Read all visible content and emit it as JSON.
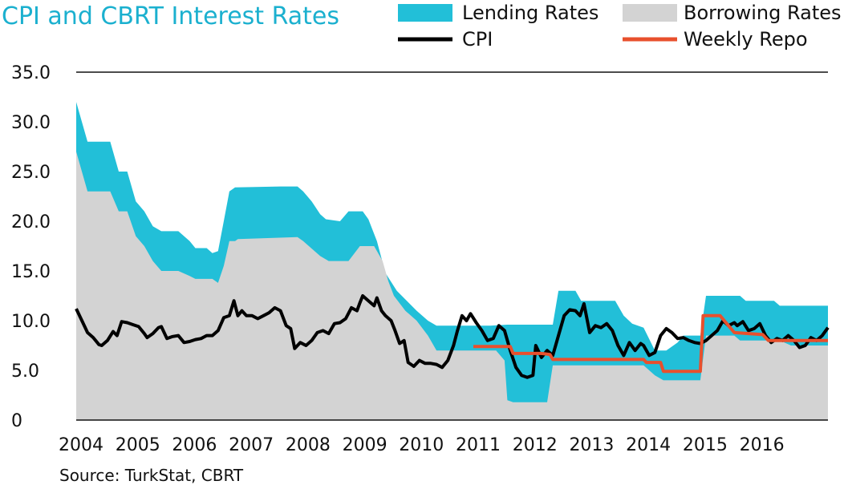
{
  "chart_data": {
    "type": "area",
    "title": "CPI and CBRT Interest Rates",
    "source": "Source: TurkStat, CBRT",
    "x_range": [
      2004.0,
      2017.25
    ],
    "ylim": [
      0,
      35
    ],
    "y_ticks": [
      {
        "value": 0,
        "label": "0"
      },
      {
        "value": 5,
        "label": "5.0"
      },
      {
        "value": 10,
        "label": "10.0"
      },
      {
        "value": 15,
        "label": "15.0"
      },
      {
        "value": 20,
        "label": "20.0"
      },
      {
        "value": 25,
        "label": "25.0"
      },
      {
        "value": 30,
        "label": "30.0"
      },
      {
        "value": 35,
        "label": "35.0"
      }
    ],
    "x_ticks": [
      {
        "value": 2004,
        "label": "2004"
      },
      {
        "value": 2005,
        "label": "2005"
      },
      {
        "value": 2006,
        "label": "2006"
      },
      {
        "value": 2007,
        "label": "2007"
      },
      {
        "value": 2008,
        "label": "2008"
      },
      {
        "value": 2009,
        "label": "2009"
      },
      {
        "value": 2010,
        "label": "2010"
      },
      {
        "value": 2011,
        "label": "2011"
      },
      {
        "value": 2012,
        "label": "2012"
      },
      {
        "value": 2013,
        "label": "2013"
      },
      {
        "value": 2014,
        "label": "2014"
      },
      {
        "value": 2015,
        "label": "2015"
      },
      {
        "value": 2016,
        "label": "2016"
      }
    ],
    "grid": false,
    "legend": {
      "placement": "top-right",
      "items": [
        {
          "label": "Lending Rates",
          "kind": "area",
          "color": "#22bfd8"
        },
        {
          "label": "Borrowing Rates",
          "kind": "area",
          "color": "#d3d3d3"
        },
        {
          "label": "CPI",
          "kind": "line",
          "color": "#000000"
        },
        {
          "label": "Weekly Repo",
          "kind": "line",
          "color": "#e8502d"
        }
      ]
    },
    "series": [
      {
        "name": "Lending Rates",
        "kind": "area",
        "color": "#22bfd8",
        "points": [
          [
            2004.0,
            32.0
          ],
          [
            2004.2,
            28.0
          ],
          [
            2004.6,
            28.0
          ],
          [
            2004.75,
            25.0
          ],
          [
            2004.9,
            25.0
          ],
          [
            2005.05,
            22.0
          ],
          [
            2005.2,
            21.0
          ],
          [
            2005.35,
            19.5
          ],
          [
            2005.5,
            19.0
          ],
          [
            2005.8,
            19.0
          ],
          [
            2006.0,
            18.0
          ],
          [
            2006.1,
            17.3
          ],
          [
            2006.3,
            17.3
          ],
          [
            2006.4,
            16.8
          ],
          [
            2006.5,
            17.0
          ],
          [
            2006.6,
            20.0
          ],
          [
            2006.7,
            23.0
          ],
          [
            2006.8,
            23.4
          ],
          [
            2007.6,
            23.5
          ],
          [
            2007.9,
            23.5
          ],
          [
            2008.0,
            23.0
          ],
          [
            2008.15,
            22.0
          ],
          [
            2008.3,
            20.7
          ],
          [
            2008.4,
            20.2
          ],
          [
            2008.65,
            20.0
          ],
          [
            2008.8,
            21.0
          ],
          [
            2009.05,
            21.0
          ],
          [
            2009.15,
            20.2
          ],
          [
            2009.3,
            18.0
          ],
          [
            2009.45,
            14.8
          ],
          [
            2009.65,
            13.0
          ],
          [
            2010.0,
            11.0
          ],
          [
            2010.2,
            10.0
          ],
          [
            2010.35,
            9.5
          ],
          [
            2011.0,
            9.5
          ],
          [
            2011.3,
            9.5
          ],
          [
            2011.6,
            9.6
          ],
          [
            2012.0,
            9.6
          ],
          [
            2012.4,
            9.6
          ],
          [
            2012.5,
            13.0
          ],
          [
            2012.8,
            13.0
          ],
          [
            2012.9,
            12.0
          ],
          [
            2013.5,
            12.0
          ],
          [
            2013.65,
            10.5
          ],
          [
            2013.8,
            9.7
          ],
          [
            2014.0,
            9.3
          ],
          [
            2014.2,
            7.0
          ],
          [
            2014.4,
            7.0
          ],
          [
            2014.6,
            7.8
          ],
          [
            2014.7,
            8.5
          ],
          [
            2015.0,
            8.5
          ],
          [
            2015.1,
            12.5
          ],
          [
            2015.7,
            12.5
          ],
          [
            2015.8,
            12.0
          ],
          [
            2016.3,
            12.0
          ],
          [
            2016.4,
            11.5
          ],
          [
            2017.25,
            11.5
          ]
        ]
      },
      {
        "name": "Borrowing Rates",
        "kind": "area",
        "color": "#d3d3d3",
        "points": [
          [
            2004.0,
            27.0
          ],
          [
            2004.2,
            23.0
          ],
          [
            2004.6,
            23.0
          ],
          [
            2004.75,
            21.0
          ],
          [
            2004.9,
            21.0
          ],
          [
            2005.05,
            18.5
          ],
          [
            2005.2,
            17.5
          ],
          [
            2005.35,
            16.0
          ],
          [
            2005.5,
            15.0
          ],
          [
            2005.8,
            15.0
          ],
          [
            2006.0,
            14.5
          ],
          [
            2006.1,
            14.2
          ],
          [
            2006.4,
            14.2
          ],
          [
            2006.5,
            13.8
          ],
          [
            2006.6,
            15.5
          ],
          [
            2006.7,
            18.0
          ],
          [
            2006.8,
            18.0
          ],
          [
            2006.85,
            18.2
          ],
          [
            2007.9,
            18.4
          ],
          [
            2008.0,
            18.0
          ],
          [
            2008.3,
            16.5
          ],
          [
            2008.45,
            16.0
          ],
          [
            2008.8,
            16.0
          ],
          [
            2009.0,
            17.5
          ],
          [
            2009.25,
            17.5
          ],
          [
            2009.4,
            16.0
          ],
          [
            2009.5,
            14.0
          ],
          [
            2009.6,
            12.5
          ],
          [
            2009.8,
            11.0
          ],
          [
            2010.0,
            10.0
          ],
          [
            2010.2,
            8.5
          ],
          [
            2010.35,
            7.0
          ],
          [
            2010.5,
            7.0
          ],
          [
            2011.0,
            7.0
          ],
          [
            2011.4,
            7.0
          ],
          [
            2011.55,
            6.0
          ],
          [
            2011.6,
            2.0
          ],
          [
            2011.7,
            1.8
          ],
          [
            2012.3,
            1.8
          ],
          [
            2012.4,
            5.5
          ],
          [
            2013.0,
            5.5
          ],
          [
            2013.6,
            5.5
          ],
          [
            2014.0,
            5.5
          ],
          [
            2014.2,
            4.5
          ],
          [
            2014.35,
            4.0
          ],
          [
            2015.0,
            4.0
          ],
          [
            2015.1,
            8.5
          ],
          [
            2015.6,
            8.5
          ],
          [
            2015.7,
            8.0
          ],
          [
            2016.4,
            8.0
          ],
          [
            2016.6,
            7.5
          ],
          [
            2017.25,
            7.5
          ]
        ]
      },
      {
        "name": "CPI",
        "kind": "line",
        "color": "#000000",
        "points": [
          [
            2004.0,
            11.2
          ],
          [
            2004.1,
            10.0
          ],
          [
            2004.2,
            8.8
          ],
          [
            2004.3,
            8.3
          ],
          [
            2004.4,
            7.6
          ],
          [
            2004.45,
            7.5
          ],
          [
            2004.55,
            8.0
          ],
          [
            2004.65,
            8.9
          ],
          [
            2004.72,
            8.5
          ],
          [
            2004.8,
            9.9
          ],
          [
            2004.9,
            9.8
          ],
          [
            2005.0,
            9.6
          ],
          [
            2005.1,
            9.4
          ],
          [
            2005.2,
            8.7
          ],
          [
            2005.25,
            8.3
          ],
          [
            2005.35,
            8.7
          ],
          [
            2005.45,
            9.3
          ],
          [
            2005.5,
            9.4
          ],
          [
            2005.6,
            8.2
          ],
          [
            2005.7,
            8.4
          ],
          [
            2005.8,
            8.5
          ],
          [
            2005.9,
            7.8
          ],
          [
            2006.0,
            7.9
          ],
          [
            2006.1,
            8.1
          ],
          [
            2006.2,
            8.2
          ],
          [
            2006.3,
            8.5
          ],
          [
            2006.4,
            8.5
          ],
          [
            2006.5,
            9.0
          ],
          [
            2006.6,
            10.3
          ],
          [
            2006.7,
            10.5
          ],
          [
            2006.78,
            12.0
          ],
          [
            2006.85,
            10.5
          ],
          [
            2006.92,
            11.0
          ],
          [
            2007.0,
            10.5
          ],
          [
            2007.1,
            10.5
          ],
          [
            2007.2,
            10.2
          ],
          [
            2007.3,
            10.5
          ],
          [
            2007.4,
            10.8
          ],
          [
            2007.5,
            11.3
          ],
          [
            2007.6,
            11.0
          ],
          [
            2007.7,
            9.5
          ],
          [
            2007.78,
            9.2
          ],
          [
            2007.85,
            7.2
          ],
          [
            2007.95,
            7.8
          ],
          [
            2008.05,
            7.5
          ],
          [
            2008.15,
            8.0
          ],
          [
            2008.25,
            8.8
          ],
          [
            2008.35,
            9.0
          ],
          [
            2008.45,
            8.7
          ],
          [
            2008.55,
            9.7
          ],
          [
            2008.65,
            9.8
          ],
          [
            2008.75,
            10.2
          ],
          [
            2008.85,
            11.3
          ],
          [
            2008.95,
            11.0
          ],
          [
            2009.0,
            11.8
          ],
          [
            2009.05,
            12.5
          ],
          [
            2009.15,
            12.0
          ],
          [
            2009.25,
            11.5
          ],
          [
            2009.3,
            12.3
          ],
          [
            2009.38,
            11.0
          ],
          [
            2009.45,
            10.5
          ],
          [
            2009.55,
            10.0
          ],
          [
            2009.62,
            9.0
          ],
          [
            2009.7,
            7.7
          ],
          [
            2009.78,
            8.0
          ],
          [
            2009.85,
            5.8
          ],
          [
            2009.95,
            5.4
          ],
          [
            2010.05,
            6.0
          ],
          [
            2010.15,
            5.7
          ],
          [
            2010.25,
            5.7
          ],
          [
            2010.35,
            5.6
          ],
          [
            2010.45,
            5.3
          ],
          [
            2010.55,
            6.0
          ],
          [
            2010.65,
            7.5
          ],
          [
            2010.72,
            9.0
          ],
          [
            2010.8,
            10.5
          ],
          [
            2010.88,
            10.0
          ],
          [
            2010.95,
            10.7
          ],
          [
            2011.05,
            9.8
          ],
          [
            2011.15,
            9.0
          ],
          [
            2011.25,
            8.0
          ],
          [
            2011.35,
            8.2
          ],
          [
            2011.45,
            9.5
          ],
          [
            2011.55,
            9.0
          ],
          [
            2011.65,
            7.0
          ],
          [
            2011.75,
            5.3
          ],
          [
            2011.85,
            4.5
          ],
          [
            2011.95,
            4.3
          ],
          [
            2012.05,
            4.5
          ],
          [
            2012.1,
            7.5
          ],
          [
            2012.2,
            6.3
          ],
          [
            2012.3,
            7.0
          ],
          [
            2012.4,
            6.5
          ],
          [
            2012.5,
            8.5
          ],
          [
            2012.6,
            10.5
          ],
          [
            2012.7,
            11.1
          ],
          [
            2012.8,
            11.0
          ],
          [
            2012.88,
            10.5
          ],
          [
            2012.95,
            11.7
          ],
          [
            2013.05,
            8.8
          ],
          [
            2013.15,
            9.5
          ],
          [
            2013.25,
            9.3
          ],
          [
            2013.35,
            9.7
          ],
          [
            2013.45,
            9.0
          ],
          [
            2013.55,
            7.5
          ],
          [
            2013.65,
            6.5
          ],
          [
            2013.75,
            7.8
          ],
          [
            2013.85,
            7.0
          ],
          [
            2013.95,
            7.7
          ],
          [
            2014.0,
            7.5
          ],
          [
            2014.1,
            6.5
          ],
          [
            2014.2,
            6.8
          ],
          [
            2014.3,
            8.5
          ],
          [
            2014.4,
            9.2
          ],
          [
            2014.5,
            8.8
          ],
          [
            2014.6,
            8.2
          ],
          [
            2014.7,
            8.3
          ],
          [
            2014.8,
            8.0
          ],
          [
            2014.9,
            7.8
          ],
          [
            2015.0,
            7.7
          ],
          [
            2015.1,
            8.0
          ],
          [
            2015.2,
            8.5
          ],
          [
            2015.3,
            9.0
          ],
          [
            2015.4,
            10.0
          ],
          [
            2015.5,
            9.5
          ],
          [
            2015.6,
            9.8
          ],
          [
            2015.65,
            9.5
          ],
          [
            2015.75,
            9.9
          ],
          [
            2015.85,
            9.0
          ],
          [
            2015.95,
            9.2
          ],
          [
            2016.05,
            9.7
          ],
          [
            2016.15,
            8.5
          ],
          [
            2016.25,
            7.8
          ],
          [
            2016.35,
            8.2
          ],
          [
            2016.45,
            8.0
          ],
          [
            2016.55,
            8.5
          ],
          [
            2016.65,
            8.0
          ],
          [
            2016.75,
            7.3
          ],
          [
            2016.85,
            7.5
          ],
          [
            2016.95,
            8.3
          ],
          [
            2017.05,
            8.0
          ],
          [
            2017.15,
            8.5
          ],
          [
            2017.25,
            9.3
          ]
        ]
      },
      {
        "name": "Weekly Repo",
        "kind": "line",
        "color": "#e8502d",
        "points": [
          [
            2011.0,
            7.4
          ],
          [
            2011.65,
            7.4
          ],
          [
            2011.7,
            6.7
          ],
          [
            2012.2,
            6.7
          ],
          [
            2012.35,
            6.6
          ],
          [
            2012.4,
            6.1
          ],
          [
            2013.0,
            6.1
          ],
          [
            2014.0,
            6.1
          ],
          [
            2014.05,
            5.8
          ],
          [
            2014.3,
            5.8
          ],
          [
            2014.35,
            4.9
          ],
          [
            2015.0,
            4.9
          ],
          [
            2015.05,
            10.5
          ],
          [
            2015.35,
            10.5
          ],
          [
            2015.6,
            8.8
          ],
          [
            2016.1,
            8.6
          ],
          [
            2016.2,
            8.0
          ],
          [
            2017.25,
            8.0
          ]
        ]
      }
    ]
  }
}
